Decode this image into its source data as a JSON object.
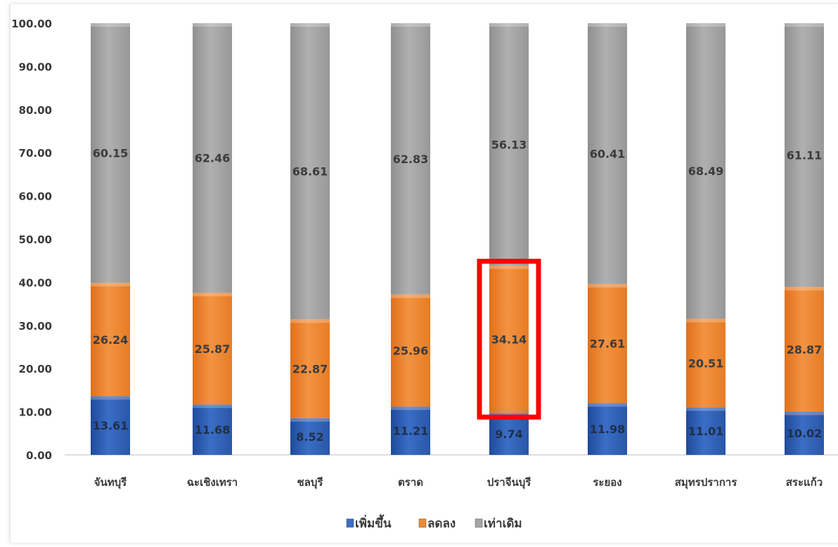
{
  "chart_data": {
    "type": "bar",
    "stacked": true,
    "categories": [
      "จันทบุรี",
      "ฉะเชิงเทรา",
      "ชลบุรี",
      "ตราด",
      "ปราจีนบุรี",
      "ระยอง",
      "สมุทรปราการ",
      "สระแก้ว"
    ],
    "series": [
      {
        "name": "เพิ่มขึ้น",
        "color": "#3a6ec6",
        "values": [
          13.61,
          11.68,
          8.52,
          11.21,
          9.74,
          11.98,
          11.01,
          10.02
        ]
      },
      {
        "name": "ลดลง",
        "color": "#f08a32",
        "values": [
          26.24,
          25.87,
          22.87,
          25.96,
          34.14,
          27.61,
          20.51,
          28.87
        ]
      },
      {
        "name": "เท่าเดิม",
        "color": "#a5a5a5",
        "values": [
          60.15,
          62.46,
          68.61,
          62.83,
          56.13,
          60.41,
          68.49,
          61.11
        ]
      }
    ],
    "ylim": [
      0,
      100
    ],
    "y_ticks": [
      "0.00",
      "10.00",
      "20.00",
      "30.00",
      "40.00",
      "50.00",
      "60.00",
      "70.00",
      "80.00",
      "90.00",
      "100.00"
    ],
    "legend_position": "bottom",
    "grid": false,
    "highlight": {
      "category_index": 4,
      "series_index": 1,
      "color": "#ff0000"
    }
  }
}
